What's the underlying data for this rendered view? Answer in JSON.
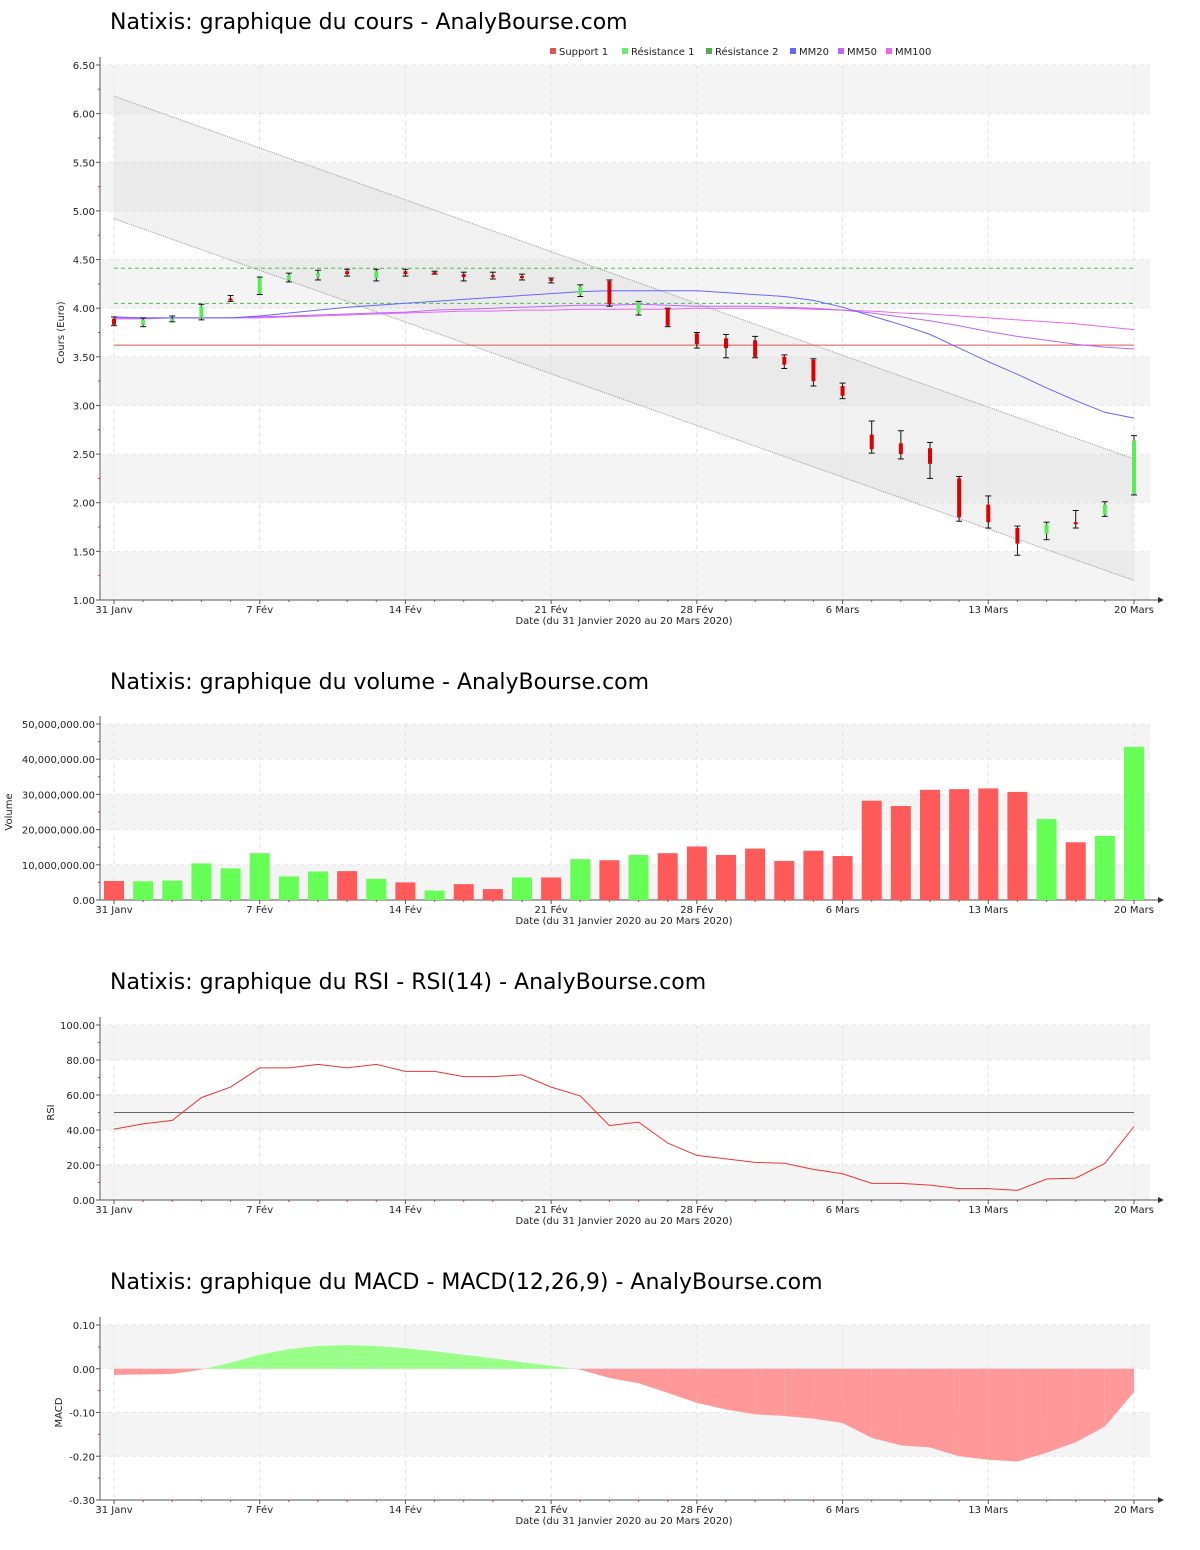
{
  "titles": {
    "price": "Natixis: graphique du cours - AnalyBourse.com",
    "volume": "Natixis: graphique du volume - AnalyBourse.com",
    "rsi": "Natixis: graphique du RSI - RSI(14) - AnalyBourse.com",
    "macd": "Natixis: graphique du MACD - MACD(12,26,9) - AnalyBourse.com"
  },
  "colors": {
    "up": "#55ee55",
    "down": "#dd0000",
    "volume_up": "#66ff55",
    "volume_down": "#ff5a5a",
    "rsi": "#ee3333",
    "macd_pos": "#99ff88",
    "macd_neg": "#ff9999"
  },
  "chart_data": [
    {
      "type": "candlestick",
      "title": "Natixis: graphique du cours - AnalyBourse.com",
      "xlabel": "Date (du 31 Janvier 2020 au 20 Mars 2020)",
      "ylabel": "Cours (Euro)",
      "ylim": [
        1.0,
        6.5
      ],
      "yticks": [
        "1.00",
        "1.50",
        "2.00",
        "2.50",
        "3.00",
        "3.50",
        "4.00",
        "4.50",
        "5.00",
        "5.50",
        "6.00",
        "6.50"
      ],
      "xticks": [
        {
          "index": 0,
          "label": "31 Janv"
        },
        {
          "index": 5,
          "label": "7 Fév"
        },
        {
          "index": 10,
          "label": "14 Fév"
        },
        {
          "index": 15,
          "label": "21 Fév"
        },
        {
          "index": 20,
          "label": "28 Fév"
        },
        {
          "index": 25,
          "label": "6 Mars"
        },
        {
          "index": 30,
          "label": "13 Mars"
        },
        {
          "index": 35,
          "label": "20 Mars"
        }
      ],
      "legend": [
        "Support 1",
        "Résistance 1",
        "Résistance 2",
        "MM20",
        "MM50",
        "MM100"
      ],
      "legend_colors": [
        "#dd5555",
        "#66ee66",
        "#55aa55",
        "#6666ff",
        "#bb66ff",
        "#ee66ee"
      ],
      "legend_position": "top",
      "support_1": 3.62,
      "resistance_1": 4.05,
      "resistance_2": 4.41,
      "candles": [
        {
          "o": 3.89,
          "h": 3.91,
          "l": 3.82,
          "c": 3.83
        },
        {
          "o": 3.83,
          "h": 3.9,
          "l": 3.81,
          "c": 3.88
        },
        {
          "o": 3.89,
          "h": 3.92,
          "l": 3.86,
          "c": 3.89
        },
        {
          "o": 3.9,
          "h": 4.04,
          "l": 3.88,
          "c": 4.02
        },
        {
          "o": 4.1,
          "h": 4.13,
          "l": 4.07,
          "c": 4.09
        },
        {
          "o": 4.15,
          "h": 4.32,
          "l": 4.14,
          "c": 4.31
        },
        {
          "o": 4.29,
          "h": 4.36,
          "l": 4.27,
          "c": 4.34
        },
        {
          "o": 4.32,
          "h": 4.39,
          "l": 4.29,
          "c": 4.36
        },
        {
          "o": 4.38,
          "h": 4.4,
          "l": 4.33,
          "c": 4.35
        },
        {
          "o": 4.31,
          "h": 4.4,
          "l": 4.28,
          "c": 4.38
        },
        {
          "o": 4.38,
          "h": 4.4,
          "l": 4.33,
          "c": 4.35
        },
        {
          "o": 4.37,
          "h": 4.38,
          "l": 4.35,
          "c": 4.36
        },
        {
          "o": 4.35,
          "h": 4.37,
          "l": 4.28,
          "c": 4.32
        },
        {
          "o": 4.34,
          "h": 4.37,
          "l": 4.3,
          "c": 4.33
        },
        {
          "o": 4.33,
          "h": 4.35,
          "l": 4.29,
          "c": 4.31
        },
        {
          "o": 4.3,
          "h": 4.31,
          "l": 4.26,
          "c": 4.28
        },
        {
          "o": 4.14,
          "h": 4.24,
          "l": 4.12,
          "c": 4.22
        },
        {
          "o": 4.28,
          "h": 4.29,
          "l": 4.02,
          "c": 4.04
        },
        {
          "o": 3.95,
          "h": 4.07,
          "l": 3.93,
          "c": 4.06
        },
        {
          "o": 4.0,
          "h": 4.0,
          "l": 3.81,
          "c": 3.82
        },
        {
          "o": 3.74,
          "h": 3.75,
          "l": 3.59,
          "c": 3.63
        },
        {
          "o": 3.69,
          "h": 3.73,
          "l": 3.49,
          "c": 3.59
        },
        {
          "o": 3.67,
          "h": 3.71,
          "l": 3.49,
          "c": 3.5
        },
        {
          "o": 3.5,
          "h": 3.52,
          "l": 3.38,
          "c": 3.42
        },
        {
          "o": 3.47,
          "h": 3.48,
          "l": 3.2,
          "c": 3.25
        },
        {
          "o": 3.2,
          "h": 3.23,
          "l": 3.07,
          "c": 3.1
        },
        {
          "o": 2.7,
          "h": 2.84,
          "l": 2.51,
          "c": 2.55
        },
        {
          "o": 2.61,
          "h": 2.74,
          "l": 2.45,
          "c": 2.5
        },
        {
          "o": 2.56,
          "h": 2.62,
          "l": 2.25,
          "c": 2.4
        },
        {
          "o": 2.25,
          "h": 2.27,
          "l": 1.81,
          "c": 1.85
        },
        {
          "o": 1.98,
          "h": 2.07,
          "l": 1.74,
          "c": 1.8
        },
        {
          "o": 1.74,
          "h": 1.76,
          "l": 1.46,
          "c": 1.58
        },
        {
          "o": 1.68,
          "h": 1.8,
          "l": 1.62,
          "c": 1.78
        },
        {
          "o": 1.8,
          "h": 1.92,
          "l": 1.74,
          "c": 1.78
        },
        {
          "o": 1.88,
          "h": 2.01,
          "l": 1.86,
          "c": 1.98
        },
        {
          "o": 2.09,
          "h": 2.69,
          "l": 2.08,
          "c": 2.64
        }
      ],
      "mm20": [
        3.91,
        3.9,
        3.9,
        3.9,
        3.9,
        3.92,
        3.95,
        3.98,
        4.01,
        4.03,
        4.05,
        4.07,
        4.09,
        4.11,
        4.13,
        4.15,
        4.17,
        4.18,
        4.18,
        4.18,
        4.18,
        4.16,
        4.14,
        4.12,
        4.08,
        4.01,
        3.92,
        3.83,
        3.73,
        3.59,
        3.45,
        3.32,
        3.18,
        3.05,
        2.93,
        2.87
      ],
      "mm50": [
        3.89,
        3.89,
        3.9,
        3.9,
        3.9,
        3.91,
        3.92,
        3.93,
        3.94,
        3.95,
        3.96,
        3.98,
        3.99,
        4.0,
        4.01,
        4.02,
        4.03,
        4.03,
        4.04,
        4.03,
        4.02,
        4.02,
        4.02,
        4.01,
        4.0,
        3.98,
        3.95,
        3.91,
        3.87,
        3.82,
        3.76,
        3.71,
        3.67,
        3.63,
        3.6,
        3.58
      ],
      "mm100": [
        3.9,
        3.9,
        3.9,
        3.9,
        3.9,
        3.9,
        3.91,
        3.92,
        3.93,
        3.94,
        3.95,
        3.96,
        3.97,
        3.97,
        3.98,
        3.98,
        3.99,
        3.99,
        3.99,
        3.99,
        4.0,
        4.0,
        4.0,
        4.0,
        3.99,
        3.98,
        3.97,
        3.95,
        3.94,
        3.92,
        3.9,
        3.88,
        3.86,
        3.84,
        3.81,
        3.78
      ],
      "channel": {
        "upper": [
          6.18,
          2.45
        ],
        "lower": [
          4.92,
          1.2
        ]
      }
    },
    {
      "type": "bar",
      "title": "Natixis: graphique du volume - AnalyBourse.com",
      "xlabel": "Date (du 31 Janvier 2020 au 20 Mars 2020)",
      "ylabel": "Volume",
      "ylim": [
        0,
        50000000
      ],
      "yticks": [
        "0.00",
        "10,000,000.00",
        "20,000,000.00",
        "30,000,000.00",
        "40,000,000.00",
        "50,000,000.00"
      ],
      "xticks": [
        {
          "index": 0,
          "label": "31 Janv"
        },
        {
          "index": 5,
          "label": "7 Fév"
        },
        {
          "index": 10,
          "label": "14 Fév"
        },
        {
          "index": 15,
          "label": "21 Fév"
        },
        {
          "index": 20,
          "label": "28 Fév"
        },
        {
          "index": 25,
          "label": "6 Mars"
        },
        {
          "index": 30,
          "label": "13 Mars"
        },
        {
          "index": 35,
          "label": "20 Mars"
        }
      ],
      "values": [
        5400000,
        5300000,
        5500000,
        10400000,
        9000000,
        13300000,
        6700000,
        8100000,
        8200000,
        6000000,
        5000000,
        2700000,
        4500000,
        3100000,
        6400000,
        6400000,
        11600000,
        11300000,
        12800000,
        13300000,
        15200000,
        12800000,
        14600000,
        11100000,
        14000000,
        12500000,
        28200000,
        26700000,
        31300000,
        31500000,
        31700000,
        30700000,
        23000000,
        16400000,
        18200000,
        43500000
      ],
      "up": [
        false,
        true,
        true,
        true,
        true,
        true,
        true,
        true,
        false,
        true,
        false,
        true,
        false,
        false,
        true,
        false,
        true,
        false,
        true,
        false,
        false,
        false,
        false,
        false,
        false,
        false,
        false,
        false,
        false,
        false,
        false,
        false,
        true,
        false,
        true,
        true
      ]
    },
    {
      "type": "line",
      "title": "Natixis: graphique du RSI - RSI(14) - AnalyBourse.com",
      "xlabel": "Date (du 31 Janvier 2020 au 20 Mars 2020)",
      "ylabel": "RSI",
      "ylim": [
        0,
        100
      ],
      "yticks": [
        "0.00",
        "20.00",
        "40.00",
        "60.00",
        "80.00",
        "100.00"
      ],
      "xticks": [
        {
          "index": 0,
          "label": "31 Janv"
        },
        {
          "index": 5,
          "label": "7 Fév"
        },
        {
          "index": 10,
          "label": "14 Fév"
        },
        {
          "index": 15,
          "label": "21 Fév"
        },
        {
          "index": 20,
          "label": "28 Fév"
        },
        {
          "index": 25,
          "label": "6 Mars"
        },
        {
          "index": 30,
          "label": "13 Mars"
        },
        {
          "index": 35,
          "label": "20 Mars"
        }
      ],
      "reference_line": 50,
      "values": [
        40.5,
        43.5,
        45.5,
        58.5,
        64.5,
        75.5,
        75.5,
        77.5,
        75.5,
        77.5,
        73.5,
        73.5,
        70.5,
        70.5,
        71.5,
        64.5,
        59.5,
        42.5,
        44.5,
        32.5,
        25.5,
        23.5,
        21.5,
        21.0,
        17.5,
        15.0,
        9.5,
        9.5,
        8.5,
        6.5,
        6.5,
        5.5,
        12.0,
        12.5,
        21.0,
        42.0
      ]
    },
    {
      "type": "area",
      "title": "Natixis: graphique du MACD - MACD(12,26,9) - AnalyBourse.com",
      "xlabel": "Date (du 31 Janvier 2020 au 20 Mars 2020)",
      "ylabel": "MACD",
      "ylim": [
        -0.3,
        0.1
      ],
      "yticks": [
        "-0.30",
        "-0.20",
        "-0.10",
        "0.00",
        "0.10"
      ],
      "xticks": [
        {
          "index": 0,
          "label": "31 Janv"
        },
        {
          "index": 5,
          "label": "7 Fév"
        },
        {
          "index": 10,
          "label": "14 Fév"
        },
        {
          "index": 15,
          "label": "21 Fév"
        },
        {
          "index": 20,
          "label": "28 Fév"
        },
        {
          "index": 25,
          "label": "6 Mars"
        },
        {
          "index": 30,
          "label": "13 Mars"
        },
        {
          "index": 35,
          "label": "20 Mars"
        }
      ],
      "values": [
        -0.014,
        -0.013,
        -0.012,
        -0.002,
        0.014,
        0.032,
        0.045,
        0.052,
        0.054,
        0.052,
        0.047,
        0.04,
        0.032,
        0.024,
        0.015,
        0.007,
        -0.002,
        -0.021,
        -0.033,
        -0.055,
        -0.078,
        -0.093,
        -0.104,
        -0.108,
        -0.114,
        -0.124,
        -0.158,
        -0.175,
        -0.18,
        -0.2,
        -0.208,
        -0.212,
        -0.192,
        -0.168,
        -0.132,
        -0.053
      ]
    }
  ]
}
